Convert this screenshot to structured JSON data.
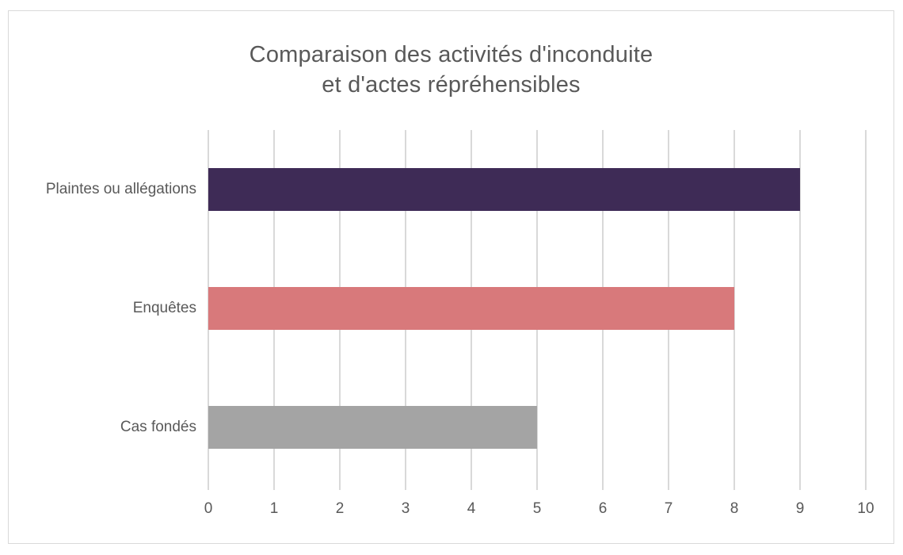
{
  "chart_data": {
    "type": "bar",
    "orientation": "horizontal",
    "title": "Comparaison des activités d'inconduite et d'actes répréhensibles",
    "title_lines": [
      "Comparaison des activités d'inconduite",
      "et d'actes répréhensibles"
    ],
    "categories": [
      "Plaintes ou allégations",
      "Enquêtes",
      "Cas fondés"
    ],
    "values": [
      9,
      8,
      5
    ],
    "bar_colors": [
      "#3E2B56",
      "#D8797B",
      "#A4A4A4"
    ],
    "xlabel": "",
    "ylabel": "",
    "xlim": [
      0,
      10
    ],
    "x_ticks": [
      0,
      1,
      2,
      3,
      4,
      5,
      6,
      7,
      8,
      9,
      10
    ],
    "grid": "vertical-only",
    "legend": "none",
    "text_color": "#595959",
    "gridline_color": "#D9D9D9",
    "frame_color": "#D9D9D9",
    "background_color": "#FFFFFF"
  }
}
